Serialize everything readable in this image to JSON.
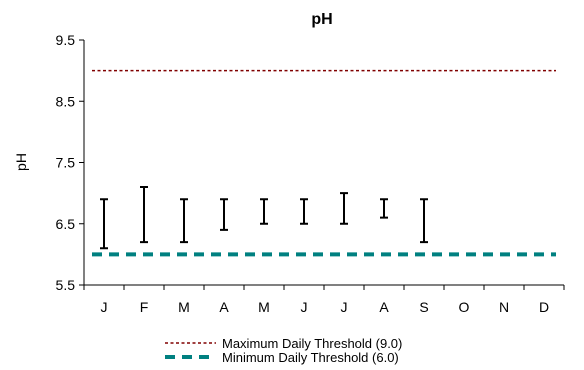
{
  "chart_data": {
    "type": "errorbar",
    "title": "pH",
    "xlabel": "",
    "ylabel": "pH",
    "categories": [
      "J",
      "F",
      "M",
      "A",
      "M",
      "J",
      "J",
      "A",
      "S",
      "O",
      "N",
      "D"
    ],
    "ylim": [
      5.5,
      9.5
    ],
    "yticks": [
      5.5,
      6.5,
      7.5,
      8.5,
      9.5
    ],
    "grid": false,
    "series": [
      {
        "type": "range",
        "ranges": [
          [
            6.1,
            6.9
          ],
          [
            6.2,
            7.1
          ],
          [
            6.2,
            6.9
          ],
          [
            6.4,
            6.9
          ],
          [
            6.5,
            6.9
          ],
          [
            6.5,
            6.9
          ],
          [
            6.5,
            7.0
          ],
          [
            6.6,
            6.9
          ],
          [
            6.2,
            6.9
          ],
          null,
          null,
          null
        ],
        "color": "#000000"
      }
    ],
    "thresholds": [
      {
        "label": "Maximum Daily Threshold (9.0)",
        "value": 9.0,
        "color": "#800000",
        "style": "dotted"
      },
      {
        "label": "Minimum Daily Threshold (6.0)",
        "value": 6.0,
        "color": "#008080",
        "style": "dashed"
      }
    ],
    "legend_position": "bottom-center"
  }
}
